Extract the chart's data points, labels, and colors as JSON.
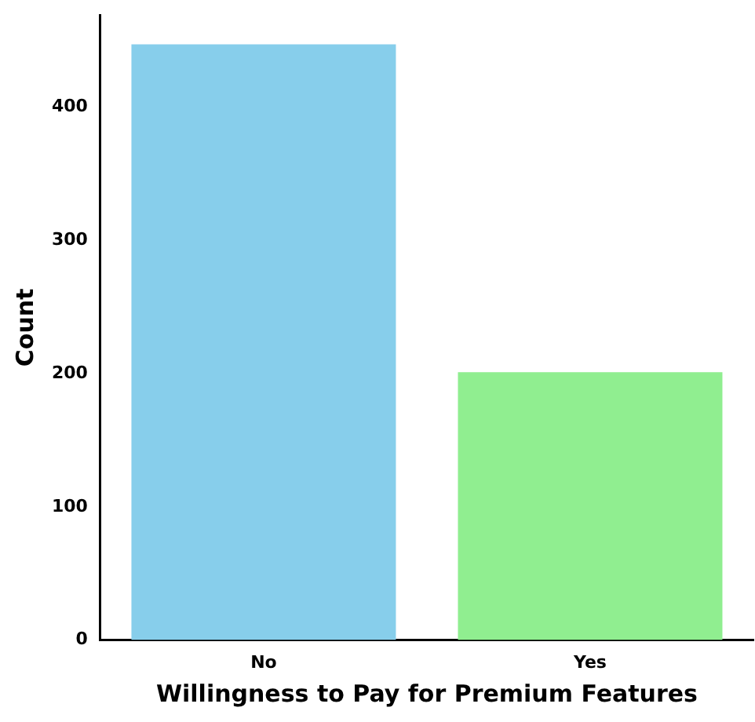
{
  "chart_data": {
    "type": "bar",
    "xlabel": "Willingness to Pay for Premium Features",
    "ylabel": "Count",
    "categories": [
      "No",
      "Yes"
    ],
    "values": [
      447,
      201
    ],
    "colors": [
      "#87ceeb",
      "#90ee90"
    ],
    "ylim": [
      0,
      469
    ],
    "yticks": [
      0,
      100,
      200,
      300,
      400
    ],
    "grid": false,
    "legend": false
  }
}
